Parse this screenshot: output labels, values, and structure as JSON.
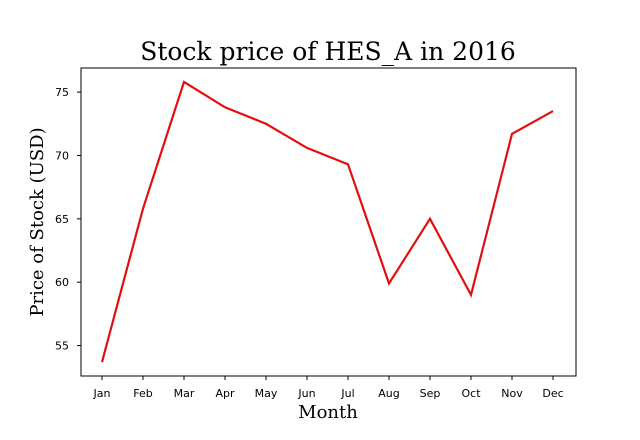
{
  "chart_data": {
    "type": "line",
    "title": "Stock price of HES_A in 2016",
    "xlabel": "Month",
    "ylabel": "Price of Stock (USD)",
    "categories": [
      "Jan",
      "Feb",
      "Mar",
      "Apr",
      "May",
      "Jun",
      "Jul",
      "Aug",
      "Sep",
      "Oct",
      "Nov",
      "Dec"
    ],
    "series": [
      {
        "name": "HES_A",
        "color": "#e01010",
        "values": [
          53.7,
          65.8,
          75.8,
          73.8,
          72.5,
          70.6,
          69.3,
          59.9,
          65.0,
          59.0,
          71.7,
          73.5
        ]
      }
    ],
    "yticks": [
      55,
      60,
      65,
      70,
      75
    ],
    "ylim": [
      52.6,
      76.9
    ],
    "grid": false,
    "legend": "none"
  }
}
